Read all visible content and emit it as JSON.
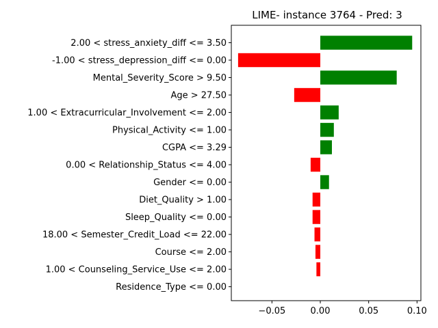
{
  "chart_data": {
    "type": "bar",
    "orientation": "horizontal",
    "title": "LIME- instance 3764 - Pred: 3",
    "xlabel": "",
    "ylabel": "",
    "categories": [
      "2.00 < stress_anxiety_diff <= 3.50",
      "-1.00 < stress_depression_diff <= 0.00",
      "Mental_Severity_Score > 9.50",
      "Age > 27.50",
      "1.00 < Extracurricular_Involvement <= 2.00",
      "Physical_Activity <= 1.00",
      "CGPA <= 3.29",
      "0.00 < Relationship_Status <= 4.00",
      "Gender <= 0.00",
      "Diet_Quality > 1.00",
      "Sleep_Quality <= 0.00",
      "18.00 < Semester_Credit_Load <= 22.00",
      "Course <= 2.00",
      "1.00 < Counseling_Service_Use <= 2.00",
      "Residence_Type <= 0.00"
    ],
    "values": [
      0.095,
      -0.085,
      0.079,
      -0.027,
      0.019,
      0.014,
      0.012,
      -0.01,
      0.009,
      -0.008,
      -0.008,
      -0.006,
      -0.005,
      -0.004,
      0.0
    ],
    "xlim": [
      -0.092,
      0.104
    ],
    "xticks": [
      -0.05,
      0.0,
      0.05,
      0.1
    ],
    "xtick_labels": [
      "−0.05",
      "0.00",
      "0.05",
      "0.10"
    ],
    "colors": {
      "positive": "#008000",
      "negative": "#ff0000"
    },
    "grid": false,
    "legend": "none"
  }
}
